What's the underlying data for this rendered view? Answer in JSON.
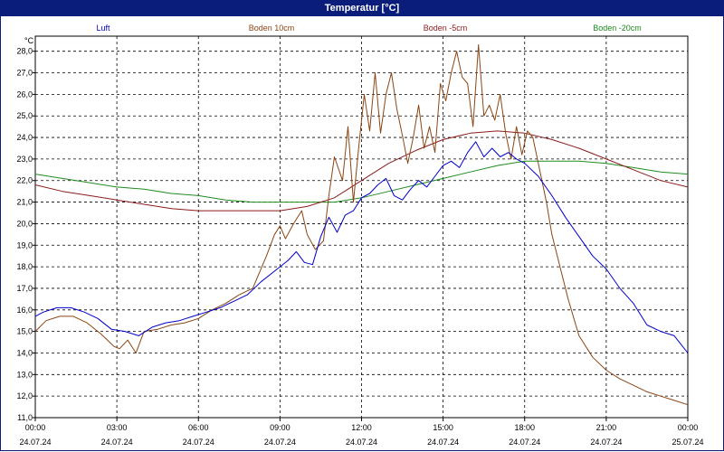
{
  "window": {
    "title": "Temperatur [°C]"
  },
  "chart_data": {
    "type": "line",
    "title": "Temperatur [°C]",
    "ylabel": "°C",
    "xlabel": "",
    "grid": true,
    "legend_position": "top",
    "ylim": [
      11.0,
      28.7
    ],
    "y_ticks": [
      "11,0",
      "12,0",
      "13,0",
      "14,0",
      "15,0",
      "16,0",
      "17,0",
      "18,0",
      "19,0",
      "20,0",
      "21,0",
      "22,0",
      "23,0",
      "24,0",
      "25,0",
      "26,0",
      "27,0",
      "28,0"
    ],
    "x_ticks": [
      {
        "time": "00:00",
        "date": "24.07.24"
      },
      {
        "time": "03:00",
        "date": "24.07.24"
      },
      {
        "time": "06:00",
        "date": "24.07.24"
      },
      {
        "time": "09:00",
        "date": "24.07.24"
      },
      {
        "time": "12:00",
        "date": "24.07.24"
      },
      {
        "time": "15:00",
        "date": "24.07.24"
      },
      {
        "time": "18:00",
        "date": "24.07.24"
      },
      {
        "time": "21:00",
        "date": "24.07.24"
      },
      {
        "time": "00:00",
        "date": "25.07.24"
      }
    ],
    "x_unit": "hours since 24.07.24 00:00",
    "series": [
      {
        "name": "Luft",
        "color": "#0000cc",
        "x": [
          0,
          0.3,
          0.8,
          1.3,
          1.8,
          2.3,
          2.8,
          3.3,
          3.8,
          4.3,
          4.8,
          5.3,
          5.8,
          6.3,
          6.8,
          7.3,
          7.8,
          8.3,
          8.8,
          9.3,
          9.6,
          9.9,
          10.2,
          10.5,
          10.8,
          11.1,
          11.4,
          11.7,
          12.0,
          12.3,
          12.6,
          12.9,
          13.2,
          13.5,
          13.8,
          14.1,
          14.4,
          14.7,
          15.0,
          15.3,
          15.6,
          15.9,
          16.2,
          16.5,
          16.8,
          17.1,
          17.4,
          17.7,
          18.0,
          18.5,
          19.0,
          19.5,
          20.0,
          20.5,
          21.0,
          21.5,
          22.0,
          22.5,
          23.0,
          23.5,
          24.0
        ],
        "values": [
          15.7,
          15.9,
          16.1,
          16.1,
          15.9,
          15.6,
          15.1,
          15.0,
          14.8,
          15.2,
          15.4,
          15.5,
          15.7,
          15.9,
          16.1,
          16.4,
          16.7,
          17.3,
          17.8,
          18.3,
          18.7,
          18.2,
          18.1,
          19.4,
          20.3,
          19.6,
          20.4,
          20.6,
          21.2,
          21.4,
          21.8,
          22.1,
          21.3,
          21.1,
          21.6,
          22.0,
          21.7,
          22.2,
          22.7,
          22.9,
          22.6,
          23.3,
          23.8,
          23.1,
          23.5,
          23.1,
          23.3,
          23.0,
          22.8,
          22.2,
          21.3,
          20.3,
          19.4,
          18.5,
          17.9,
          17.0,
          16.3,
          15.3,
          15.0,
          14.8,
          14.0
        ]
      },
      {
        "name": "Boden 10cm",
        "color": "#8b4513",
        "x": [
          0,
          0.4,
          0.9,
          1.4,
          1.9,
          2.4,
          2.9,
          3.1,
          3.4,
          3.7,
          4.0,
          4.5,
          5.0,
          5.5,
          6.0,
          6.5,
          7.0,
          7.5,
          8.0,
          8.5,
          8.8,
          9.0,
          9.2,
          9.5,
          9.8,
          10.0,
          10.3,
          10.6,
          10.8,
          11.0,
          11.3,
          11.5,
          11.7,
          11.9,
          12.1,
          12.3,
          12.5,
          12.7,
          12.9,
          13.1,
          13.3,
          13.5,
          13.7,
          13.9,
          14.1,
          14.3,
          14.5,
          14.7,
          14.9,
          15.1,
          15.3,
          15.5,
          15.7,
          15.9,
          16.1,
          16.3,
          16.5,
          16.7,
          16.9,
          17.1,
          17.3,
          17.5,
          17.7,
          17.9,
          18.1,
          18.3,
          18.5,
          18.8,
          19.0,
          19.3,
          19.6,
          20.0,
          20.5,
          21.0,
          21.5,
          22.0,
          22.5,
          23.0,
          23.5,
          24.0
        ],
        "values": [
          15.0,
          15.5,
          15.7,
          15.7,
          15.4,
          14.9,
          14.3,
          14.2,
          14.6,
          14.0,
          15.0,
          15.1,
          15.3,
          15.4,
          15.6,
          16.0,
          16.3,
          16.7,
          17.0,
          18.5,
          19.5,
          19.9,
          19.3,
          20.0,
          20.6,
          19.5,
          18.8,
          19.2,
          21.3,
          23.1,
          22.0,
          24.5,
          21.0,
          23.6,
          26.0,
          24.3,
          27.0,
          24.2,
          26.0,
          27.0,
          25.3,
          24.1,
          22.8,
          24.0,
          25.5,
          23.5,
          24.5,
          23.3,
          26.5,
          25.7,
          27.0,
          28.0,
          26.8,
          26.5,
          24.5,
          28.3,
          25.0,
          25.5,
          24.8,
          26.0,
          24.2,
          23.0,
          24.5,
          23.2,
          24.3,
          24.0,
          22.8,
          21.0,
          19.5,
          18.0,
          16.5,
          14.8,
          13.8,
          13.2,
          12.8,
          12.5,
          12.2,
          12.0,
          11.8,
          11.6
        ]
      },
      {
        "name": "Boden -5cm",
        "color": "#8b1c1c",
        "x": [
          0,
          1.0,
          2.0,
          3.0,
          4.0,
          5.0,
          6.0,
          7.0,
          8.0,
          9.0,
          10.0,
          11.0,
          12.0,
          13.0,
          14.0,
          15.0,
          16.0,
          17.0,
          18.0,
          19.0,
          20.0,
          21.0,
          22.0,
          23.0,
          24.0
        ],
        "values": [
          21.8,
          21.5,
          21.3,
          21.1,
          20.9,
          20.7,
          20.6,
          20.6,
          20.6,
          20.6,
          20.8,
          21.2,
          22.0,
          22.8,
          23.4,
          23.9,
          24.2,
          24.3,
          24.2,
          23.9,
          23.5,
          23.0,
          22.5,
          22.0,
          21.7
        ]
      },
      {
        "name": "Boden -20cm",
        "color": "#1e8c1e",
        "x": [
          0,
          1.0,
          2.0,
          3.0,
          4.0,
          5.0,
          6.0,
          7.0,
          8.0,
          9.0,
          10.0,
          11.0,
          12.0,
          13.0,
          14.0,
          15.0,
          16.0,
          17.0,
          18.0,
          19.0,
          20.0,
          21.0,
          22.0,
          23.0,
          24.0
        ],
        "values": [
          22.3,
          22.1,
          21.9,
          21.7,
          21.6,
          21.4,
          21.3,
          21.1,
          21.0,
          21.0,
          21.0,
          21.0,
          21.2,
          21.5,
          21.8,
          22.1,
          22.4,
          22.7,
          22.9,
          22.9,
          22.9,
          22.8,
          22.6,
          22.4,
          22.3
        ]
      }
    ]
  }
}
